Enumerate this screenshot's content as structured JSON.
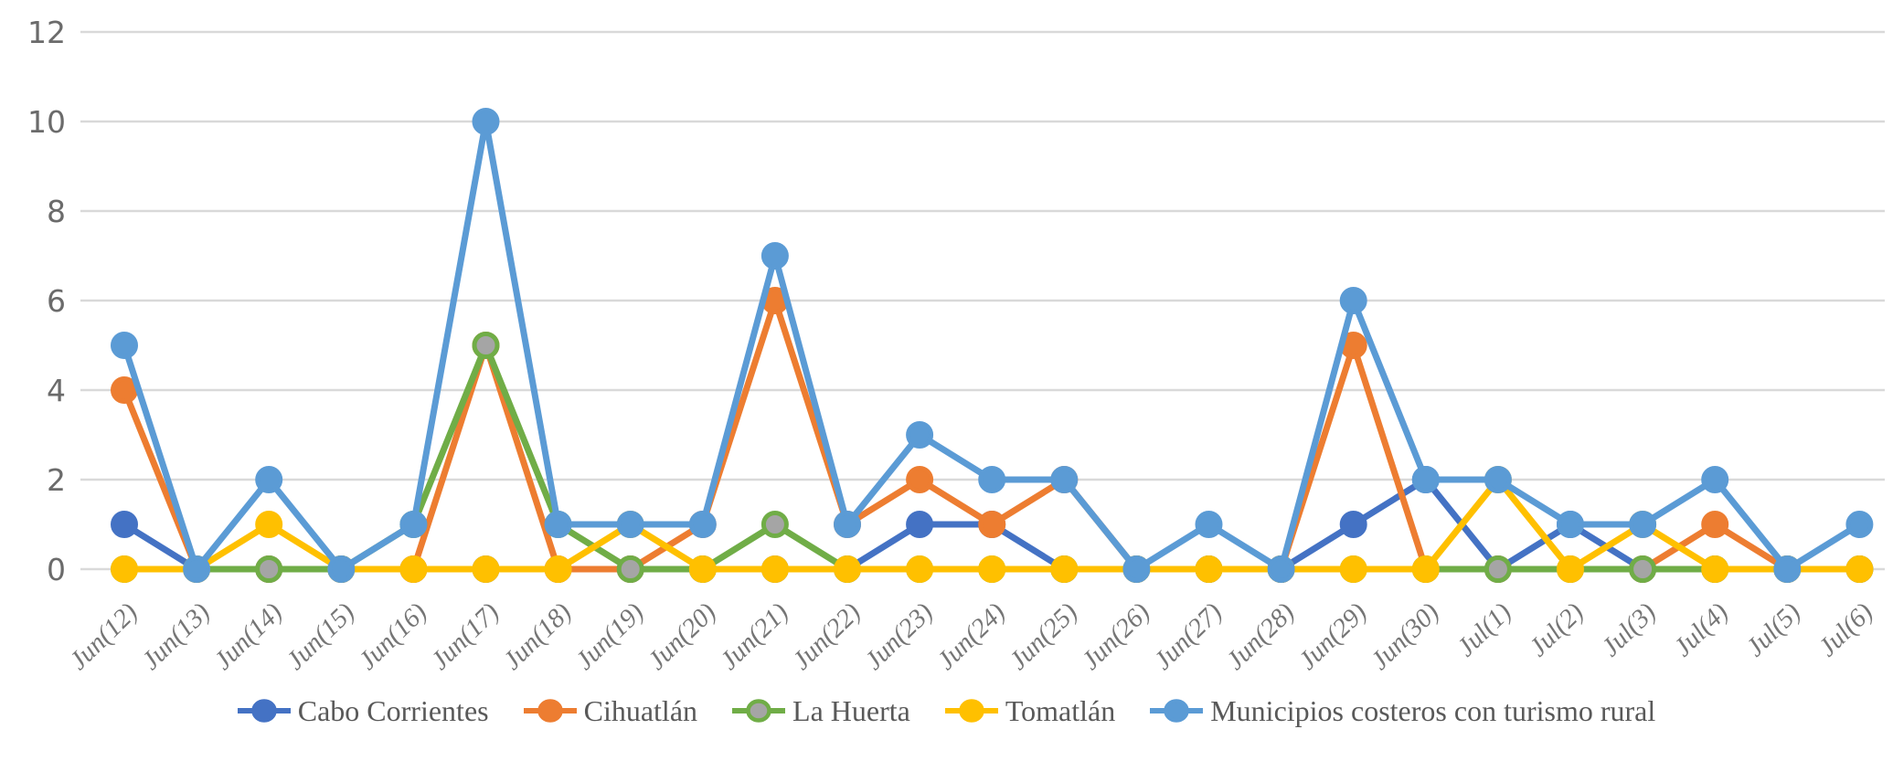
{
  "chart_data": {
    "type": "line",
    "title": "",
    "xlabel": "",
    "ylabel": "",
    "categories": [
      "Jun(12)",
      "Jun(13)",
      "Jun(14)",
      "Jun(15)",
      "Jun(16)",
      "Jun(17)",
      "Jun(18)",
      "Jun(19)",
      "Jun(20)",
      "Jun(21)",
      "Jun(22)",
      "Jun(23)",
      "Jun(24)",
      "Jun(25)",
      "Jun(26)",
      "Jun(27)",
      "Jun(28)",
      "Jun(29)",
      "Jun(30)",
      "Jul(1)",
      "Jul(2)",
      "Jul(3)",
      "Jul(4)",
      "Jul(5)",
      "Jul(6)"
    ],
    "series": [
      {
        "name": "Cabo Corrientes",
        "color": "#4472C4",
        "marker_fill": "#4472C4",
        "values": [
          1,
          0,
          0,
          0,
          0,
          0,
          0,
          0,
          0,
          0,
          0,
          1,
          1,
          0,
          0,
          0,
          0,
          1,
          2,
          0,
          1,
          0,
          0,
          0,
          0
        ]
      },
      {
        "name": "Cihuatlán",
        "color": "#ED7D31",
        "marker_fill": "#ED7D31",
        "values": [
          4,
          0,
          0,
          0,
          0,
          5,
          0,
          0,
          1,
          6,
          1,
          2,
          1,
          2,
          0,
          0,
          0,
          5,
          0,
          0,
          0,
          0,
          1,
          0,
          0
        ]
      },
      {
        "name": "La Huerta",
        "color": "#70AD47",
        "marker_fill": "#A5A5A5",
        "values": [
          0,
          0,
          0,
          0,
          1,
          5,
          1,
          0,
          0,
          1,
          0,
          0,
          0,
          0,
          0,
          0,
          0,
          0,
          0,
          0,
          0,
          0,
          0,
          0,
          0
        ]
      },
      {
        "name": "Tomatlán",
        "color": "#FFC000",
        "marker_fill": "#FFC000",
        "values": [
          0,
          0,
          1,
          0,
          0,
          0,
          0,
          1,
          0,
          0,
          0,
          0,
          0,
          0,
          0,
          0,
          0,
          0,
          0,
          2,
          0,
          1,
          0,
          0,
          0
        ]
      },
      {
        "name": "Municipios costeros con turismo rural",
        "color": "#5B9BD5",
        "marker_fill": "#5B9BD5",
        "values": [
          5,
          0,
          2,
          0,
          1,
          10,
          1,
          1,
          1,
          7,
          1,
          3,
          2,
          2,
          0,
          1,
          0,
          6,
          2,
          2,
          1,
          1,
          2,
          0,
          1
        ]
      }
    ],
    "ylim": [
      0,
      12
    ],
    "ytick_step": 2,
    "ytick_labels": [
      "0",
      "2",
      "4",
      "6",
      "8",
      "10",
      "12"
    ],
    "grid": true,
    "gridline_color": "#D9D9D9",
    "tick_label_color": "#6b6b6b",
    "legend_position": "bottom"
  }
}
